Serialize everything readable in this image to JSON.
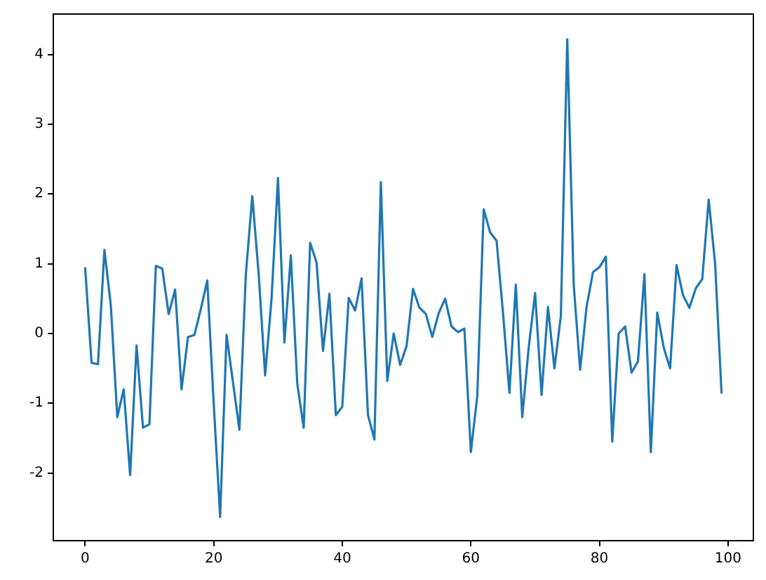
{
  "chart_data": {
    "type": "line",
    "x": [
      0,
      1,
      2,
      3,
      4,
      5,
      6,
      7,
      8,
      9,
      10,
      11,
      12,
      13,
      14,
      15,
      16,
      17,
      18,
      19,
      20,
      21,
      22,
      23,
      24,
      25,
      26,
      27,
      28,
      29,
      30,
      31,
      32,
      33,
      34,
      35,
      36,
      37,
      38,
      39,
      40,
      41,
      42,
      43,
      44,
      45,
      46,
      47,
      48,
      49,
      50,
      51,
      52,
      53,
      54,
      55,
      56,
      57,
      58,
      59,
      60,
      61,
      62,
      63,
      64,
      65,
      66,
      67,
      68,
      69,
      70,
      71,
      72,
      73,
      74,
      75,
      76,
      77,
      78,
      79,
      80,
      81,
      82,
      83,
      84,
      85,
      86,
      87,
      88,
      89,
      90,
      91,
      92,
      93,
      94,
      95,
      96,
      97,
      98,
      99
    ],
    "series": [
      {
        "color": "#1f77b4",
        "values": [
          0.95,
          -0.42,
          -0.44,
          1.2,
          0.4,
          -1.2,
          -0.8,
          -2.03,
          -0.17,
          -1.35,
          -1.3,
          0.97,
          0.93,
          0.28,
          0.63,
          -0.8,
          -0.05,
          -0.02,
          0.35,
          0.76,
          -1.0,
          -2.63,
          -0.02,
          -0.7,
          -1.38,
          0.85,
          1.97,
          0.85,
          -0.6,
          0.5,
          2.23,
          -0.13,
          1.12,
          -0.72,
          -1.35,
          1.3,
          1.02,
          -0.25,
          0.57,
          -1.17,
          -1.05,
          0.51,
          0.33,
          0.79,
          -1.17,
          -1.52,
          2.17,
          -0.68,
          0.0,
          -0.45,
          -0.18,
          0.64,
          0.37,
          0.28,
          -0.05,
          0.29,
          0.5,
          0.1,
          0.02,
          0.07,
          -1.7,
          -0.9,
          1.78,
          1.45,
          1.33,
          0.3,
          -0.85,
          0.7,
          -1.2,
          -0.2,
          0.58,
          -0.88,
          0.38,
          -0.5,
          0.25,
          4.22,
          0.7,
          -0.52,
          0.38,
          0.88,
          0.95,
          1.1,
          -1.55,
          0.0,
          0.1,
          -0.56,
          -0.4,
          0.85,
          -1.7,
          0.3,
          -0.2,
          -0.5,
          0.98,
          0.55,
          0.37,
          0.65,
          0.78,
          1.92,
          1.0,
          -0.86
        ]
      }
    ],
    "xlim": [
      -4.95,
      103.95
    ],
    "ylim": [
      -2.97,
      4.58
    ],
    "xticks": [
      0,
      20,
      40,
      60,
      80,
      100
    ],
    "yticks": [
      -2,
      -1,
      0,
      1,
      2,
      3,
      4
    ],
    "grid": false,
    "legend": false,
    "marker": "none",
    "line_style": "solid"
  }
}
